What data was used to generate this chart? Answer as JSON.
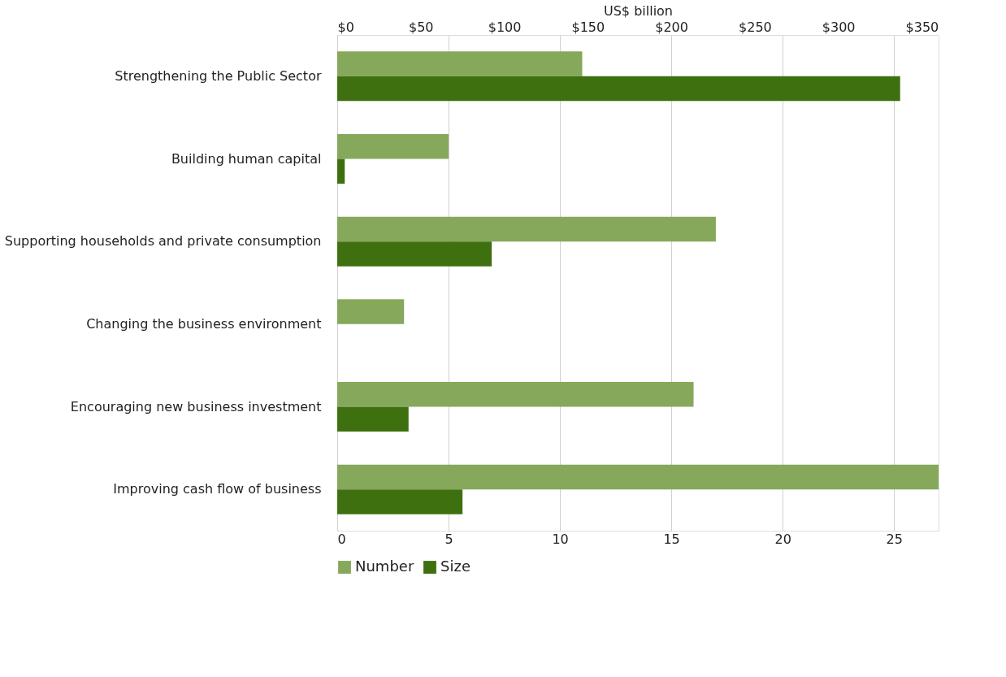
{
  "chart_data": {
    "type": "bar",
    "orientation": "horizontal",
    "x2label": "US$ billion",
    "categories": [
      "Strengthening the Public Sector",
      "Building human capital",
      "Supporting households and private consumption",
      "Changing the business environment",
      "Encouraging new business investment",
      "Improving cash flow of business"
    ],
    "series": [
      {
        "name": "Number",
        "color": "#86a85a",
        "values": [
          11,
          5,
          17,
          3,
          16,
          27
        ]
      },
      {
        "name": "Size",
        "color": "#3f7010",
        "axis": "x2",
        "values": [
          337,
          4.5,
          92.5,
          null,
          42.7,
          75
        ]
      }
    ],
    "xlim": [
      0,
      27
    ],
    "xticks": [
      0,
      5,
      10,
      15,
      20,
      25
    ],
    "x2lim": [
      0,
      360
    ],
    "x2ticks": [
      {
        "value": 0,
        "label": "$0"
      },
      {
        "value": 50,
        "label": "$50"
      },
      {
        "value": 100,
        "label": "$100"
      },
      {
        "value": 150,
        "label": "$150"
      },
      {
        "value": 200,
        "label": "$200"
      },
      {
        "value": 250,
        "label": "$250"
      },
      {
        "value": 300,
        "label": "$300"
      },
      {
        "value": 350,
        "label": "$350"
      }
    ],
    "grid": "x",
    "legend": "bottom"
  }
}
